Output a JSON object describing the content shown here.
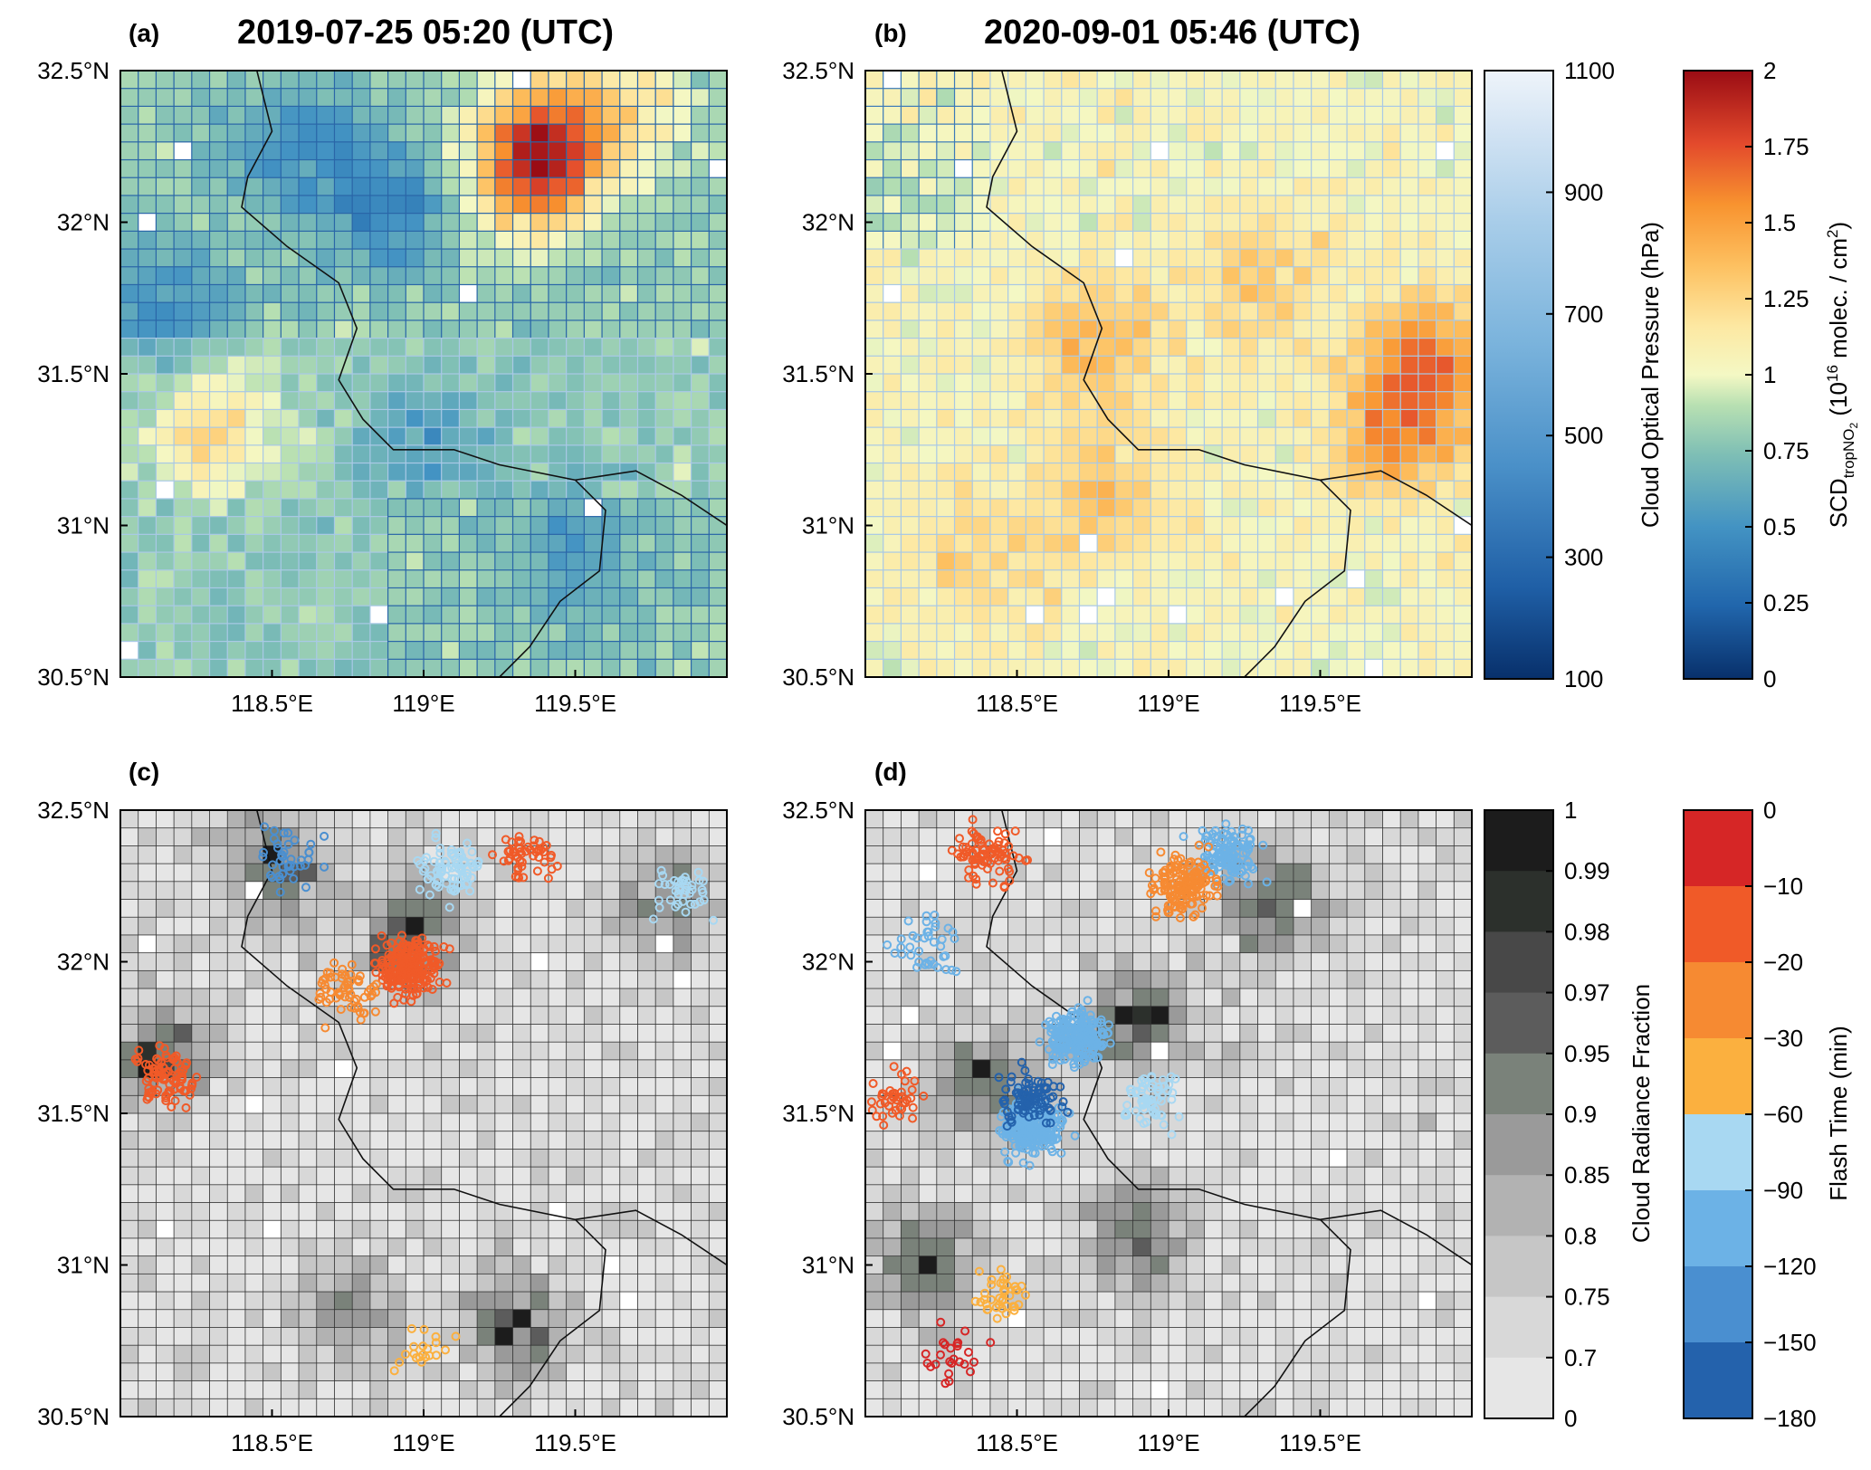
{
  "chart_data": [
    {
      "type": "heatmap",
      "panel": "(a)",
      "title": "2019-07-25 05:20 (UTC)",
      "variable": "SCD tropNO2 (10^16 molec. / cm2) with Cloud Optical Pressure (hPa) pixel outlines",
      "x_ticks": [
        "118.5°E",
        "119°E",
        "119.5°E"
      ],
      "y_ticks": [
        "32.5°N",
        "32°N",
        "31.5°N",
        "31°N",
        "30.5°N"
      ],
      "xlim": [
        118.0,
        120.0
      ],
      "ylim": [
        30.5,
        32.5
      ],
      "background_value": 0.8,
      "hotspots": [
        {
          "lon": 119.42,
          "lat": 32.27,
          "value": 1.55
        },
        {
          "lon": 119.35,
          "lat": 32.15,
          "value": 1.4
        },
        {
          "lon": 118.3,
          "lat": 31.32,
          "value": 1.25
        },
        {
          "lon": 119.7,
          "lat": 32.4,
          "value": 1.1
        }
      ],
      "lowspots": [
        {
          "lon": 118.6,
          "lat": 32.25,
          "value": 0.5
        },
        {
          "lon": 118.9,
          "lat": 32.05,
          "value": 0.45
        },
        {
          "lon": 118.15,
          "lat": 31.7,
          "value": 0.45
        },
        {
          "lon": 119.5,
          "lat": 30.9,
          "value": 0.55
        },
        {
          "lon": 119.0,
          "lat": 31.3,
          "value": 0.55
        }
      ],
      "cloud_pressure_level": "mid to low (300-700 hPa) in northwest and southeast"
    },
    {
      "type": "heatmap",
      "panel": "(b)",
      "title": "2020-09-01 05:46 (UTC)",
      "variable": "SCD tropNO2 (10^16 molec. / cm2) with Cloud Optical Pressure (hPa) pixel outlines",
      "x_ticks": [
        "118.5°E",
        "119°E",
        "119.5°E"
      ],
      "y_ticks": [
        "32.5°N",
        "32°N",
        "31.5°N",
        "31°N",
        "30.5°N"
      ],
      "xlim": [
        118.0,
        120.0
      ],
      "ylim": [
        30.5,
        32.5
      ],
      "background_value": 1.05,
      "hotspots": [
        {
          "lon": 119.85,
          "lat": 31.55,
          "value": 1.6
        },
        {
          "lon": 119.75,
          "lat": 31.3,
          "value": 1.5
        },
        {
          "lon": 118.75,
          "lat": 31.6,
          "value": 1.4
        },
        {
          "lon": 118.8,
          "lat": 31.1,
          "value": 1.35
        },
        {
          "lon": 119.3,
          "lat": 31.8,
          "value": 1.3
        },
        {
          "lon": 118.4,
          "lat": 30.9,
          "value": 1.3
        }
      ],
      "lowspots": [
        {
          "lon": 118.1,
          "lat": 32.1,
          "value": 0.9
        }
      ],
      "cloud_pressure_level": "high cloud pressure / low clouds (500-900 hPa)"
    },
    {
      "type": "heatmap",
      "panel": "(c)",
      "title": "",
      "variable": "Cloud Radiance Fraction with lightning flashes colored by Flash Time (min)",
      "x_ticks": [
        "118.5°E",
        "119°E",
        "119.5°E"
      ],
      "y_ticks": [
        "32.5°N",
        "32°N",
        "31.5°N",
        "31°N",
        "30.5°N"
      ],
      "xlim": [
        118.0,
        120.0
      ],
      "ylim": [
        30.5,
        32.5
      ],
      "background_value": 0.7,
      "cloudy_regions": [
        {
          "lon": 118.95,
          "lat": 32.1,
          "value": 0.99
        },
        {
          "lon": 118.5,
          "lat": 32.3,
          "value": 0.98
        },
        {
          "lon": 118.15,
          "lat": 31.7,
          "value": 0.97
        },
        {
          "lon": 119.3,
          "lat": 30.8,
          "value": 0.97
        },
        {
          "lon": 118.75,
          "lat": 30.85,
          "value": 0.9
        },
        {
          "lon": 119.8,
          "lat": 32.2,
          "value": 0.9
        }
      ],
      "flash_clusters": [
        {
          "lon": 118.95,
          "lat": 31.98,
          "time_min": -10,
          "count": 220
        },
        {
          "lon": 118.75,
          "lat": 31.9,
          "time_min": -20,
          "count": 60
        },
        {
          "lon": 118.15,
          "lat": 31.62,
          "time_min": -10,
          "count": 90
        },
        {
          "lon": 119.1,
          "lat": 32.3,
          "time_min": -60,
          "count": 80
        },
        {
          "lon": 118.55,
          "lat": 32.35,
          "time_min": -120,
          "count": 40
        },
        {
          "lon": 119.85,
          "lat": 32.23,
          "time_min": -60,
          "count": 40
        },
        {
          "lon": 119.35,
          "lat": 32.35,
          "time_min": -10,
          "count": 50
        },
        {
          "lon": 119.0,
          "lat": 30.72,
          "time_min": -30,
          "count": 20
        }
      ]
    },
    {
      "type": "heatmap",
      "panel": "(d)",
      "title": "",
      "variable": "Cloud Radiance Fraction with lightning flashes colored by Flash Time (min)",
      "x_ticks": [
        "118.5°E",
        "119°E",
        "119.5°E"
      ],
      "y_ticks": [
        "32.5°N",
        "32°N",
        "31.5°N",
        "31°N",
        "30.5°N"
      ],
      "xlim": [
        118.0,
        120.0
      ],
      "ylim": [
        30.5,
        32.5
      ],
      "background_value": 0.7,
      "cloudy_regions": [
        {
          "lon": 118.4,
          "lat": 31.6,
          "value": 0.99
        },
        {
          "lon": 118.9,
          "lat": 31.8,
          "value": 0.99
        },
        {
          "lon": 119.35,
          "lat": 32.2,
          "value": 0.98
        },
        {
          "lon": 118.2,
          "lat": 31.0,
          "value": 0.98
        },
        {
          "lon": 118.9,
          "lat": 31.1,
          "value": 0.97
        }
      ],
      "flash_clusters": [
        {
          "lon": 118.55,
          "lat": 31.45,
          "time_min": -90,
          "count": 250
        },
        {
          "lon": 118.7,
          "lat": 31.75,
          "time_min": -90,
          "count": 200
        },
        {
          "lon": 118.55,
          "lat": 31.55,
          "time_min": -150,
          "count": 90
        },
        {
          "lon": 119.2,
          "lat": 32.35,
          "time_min": -90,
          "count": 120
        },
        {
          "lon": 119.05,
          "lat": 32.25,
          "time_min": -20,
          "count": 150
        },
        {
          "lon": 118.4,
          "lat": 32.35,
          "time_min": -10,
          "count": 80
        },
        {
          "lon": 118.95,
          "lat": 31.55,
          "time_min": -60,
          "count": 60
        },
        {
          "lon": 118.1,
          "lat": 31.55,
          "time_min": -10,
          "count": 40
        },
        {
          "lon": 118.45,
          "lat": 30.9,
          "time_min": -30,
          "count": 40
        },
        {
          "lon": 118.3,
          "lat": 30.7,
          "time_min": 0,
          "count": 25
        },
        {
          "lon": 118.2,
          "lat": 32.05,
          "time_min": -90,
          "count": 40
        }
      ]
    }
  ],
  "colorbars": {
    "cloud_pressure": {
      "label": "Cloud Optical Pressure (hPa)",
      "ticks": [
        "1100",
        "900",
        "700",
        "500",
        "300",
        "100"
      ],
      "range": [
        100,
        1100
      ]
    },
    "scd": {
      "label_prefix": "SCD",
      "label_subscript": "tropNO",
      "label_subsub": "2",
      "label_mid": " (10",
      "label_exp": "16",
      "label_tail": " molec. / cm",
      "label_exp2": "2",
      "label_close": ")",
      "ticks": [
        "2",
        "1.75",
        "1.5",
        "1.25",
        "1",
        "0.75",
        "0.5",
        "0.25",
        "0"
      ],
      "range": [
        0,
        2
      ]
    },
    "crf": {
      "label": "Cloud Radiance Fraction",
      "ticks": [
        "1",
        "0.99",
        "0.98",
        "0.97",
        "0.95",
        "0.9",
        "0.85",
        "0.8",
        "0.75",
        "0.7",
        "0"
      ],
      "colors": [
        "#1c1c1c",
        "#2c302c",
        "#484848",
        "#5c5c5c",
        "#7a827a",
        "#9a9a9a",
        "#b2b2b2",
        "#c6c6c6",
        "#d8d8d8",
        "#e6e6e6"
      ]
    },
    "flash": {
      "label": "Flash Time (min)",
      "ticks": [
        "0",
        "−10",
        "−20",
        "−30",
        "−60",
        "−90",
        "−120",
        "−150",
        "−180"
      ],
      "colors": [
        "#d62626",
        "#f05a28",
        "#f68a32",
        "#fbb03f",
        "#a8d8f2",
        "#6cb2e6",
        "#4a8fd0",
        "#2462ac"
      ]
    }
  }
}
